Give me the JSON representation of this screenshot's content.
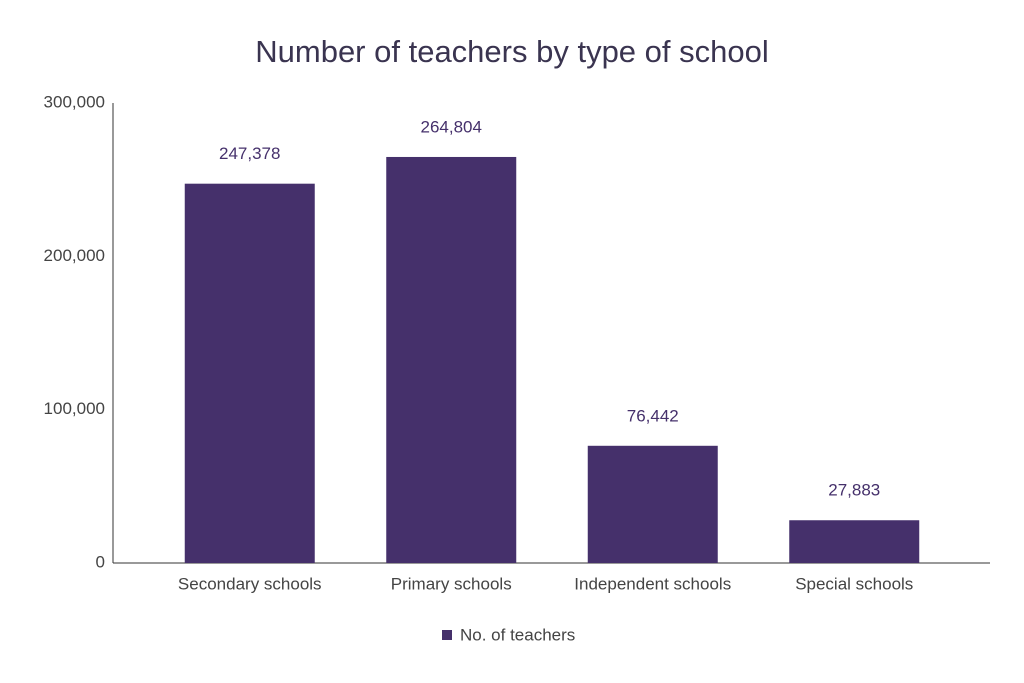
{
  "chart_data": {
    "type": "bar",
    "title": "Number of teachers by type of school",
    "categories": [
      "Secondary schools",
      "Primary schools",
      "Independent schools",
      "Special schools"
    ],
    "series": [
      {
        "name": "No. of teachers",
        "color": "#45306b",
        "values": [
          247378,
          264804,
          76442,
          27883
        ],
        "value_labels": [
          "247,378",
          "264,804",
          "76,442",
          "27,883"
        ]
      }
    ],
    "ylim": [
      0,
      300000
    ],
    "yticks": [
      0,
      {
        "value": 100000,
        "label": "100,000"
      },
      {
        "value": 200000,
        "label": "200,000"
      },
      {
        "value": 300000,
        "label": "300,000"
      }
    ],
    "grid": false,
    "legend": "bottom"
  }
}
